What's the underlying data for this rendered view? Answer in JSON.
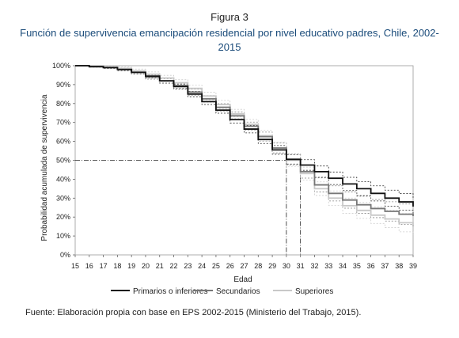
{
  "figure_label": "Figura 3",
  "figure_title": "Función de supervivencia emancipación residencial por nivel educativo padres, Chile, 2002-2015",
  "source_note": "Fuente: Elaboración propia con base en EPS 2002-2015 (Ministerio del Trabajo, 2015).",
  "chart_data": {
    "type": "line",
    "step": true,
    "xlabel": "Edad",
    "ylabel": "Probabilidad acumulada de supervivencia",
    "x": [
      15,
      16,
      17,
      18,
      19,
      20,
      21,
      22,
      23,
      24,
      25,
      26,
      27,
      28,
      29,
      30,
      31,
      32,
      33,
      34,
      35,
      36,
      37,
      38,
      39
    ],
    "xlim": [
      15,
      39
    ],
    "ylim": [
      0,
      1
    ],
    "y_ticks": [
      "0%",
      "10%",
      "20%",
      "30%",
      "40%",
      "50%",
      "60%",
      "70%",
      "80%",
      "90%",
      "100%"
    ],
    "grid": false,
    "legend_position": "bottom",
    "reference_line": {
      "y": 0.5,
      "x_drop": [
        30,
        31
      ],
      "style": "dash-dot"
    },
    "series": [
      {
        "name": "Primarios o inferiores",
        "color": "#111111",
        "width": 1.8,
        "values": [
          1.0,
          0.995,
          0.99,
          0.98,
          0.965,
          0.945,
          0.92,
          0.89,
          0.85,
          0.81,
          0.765,
          0.715,
          0.665,
          0.61,
          0.555,
          0.505,
          0.475,
          0.44,
          0.405,
          0.375,
          0.35,
          0.325,
          0.3,
          0.28,
          0.255
        ],
        "ci_low": [
          1.0,
          0.993,
          0.985,
          0.973,
          0.957,
          0.935,
          0.908,
          0.877,
          0.836,
          0.795,
          0.749,
          0.697,
          0.645,
          0.589,
          0.532,
          0.48,
          0.447,
          0.41,
          0.372,
          0.34,
          0.313,
          0.285,
          0.258,
          0.236,
          0.208
        ],
        "ci_high": [
          1.0,
          0.997,
          0.994,
          0.987,
          0.973,
          0.955,
          0.932,
          0.903,
          0.864,
          0.825,
          0.781,
          0.733,
          0.685,
          0.631,
          0.578,
          0.53,
          0.503,
          0.47,
          0.438,
          0.41,
          0.387,
          0.365,
          0.342,
          0.324,
          0.302
        ]
      },
      {
        "name": "Secundarios",
        "color": "#777777",
        "width": 1.8,
        "values": [
          1.0,
          0.995,
          0.99,
          0.98,
          0.965,
          0.94,
          0.92,
          0.895,
          0.86,
          0.825,
          0.78,
          0.735,
          0.68,
          0.625,
          0.565,
          0.505,
          0.44,
          0.37,
          0.325,
          0.29,
          0.265,
          0.245,
          0.23,
          0.215,
          0.205
        ],
        "ci_low": [
          1.0,
          0.993,
          0.985,
          0.973,
          0.956,
          0.929,
          0.907,
          0.881,
          0.844,
          0.808,
          0.761,
          0.715,
          0.658,
          0.601,
          0.539,
          0.476,
          0.406,
          0.333,
          0.285,
          0.247,
          0.22,
          0.197,
          0.179,
          0.161,
          0.148
        ],
        "ci_high": [
          1.0,
          0.997,
          0.994,
          0.987,
          0.974,
          0.951,
          0.933,
          0.909,
          0.876,
          0.842,
          0.799,
          0.755,
          0.702,
          0.649,
          0.591,
          0.534,
          0.474,
          0.407,
          0.365,
          0.333,
          0.31,
          0.293,
          0.281,
          0.269,
          0.262
        ]
      },
      {
        "name": "Superiores",
        "color": "#c8c8c8",
        "width": 1.8,
        "values": [
          1.0,
          0.995,
          0.992,
          0.985,
          0.972,
          0.955,
          0.935,
          0.91,
          0.88,
          0.84,
          0.795,
          0.745,
          0.69,
          0.63,
          0.565,
          0.5,
          0.43,
          0.35,
          0.3,
          0.26,
          0.235,
          0.21,
          0.19,
          0.17,
          0.16
        ],
        "ci_low": [
          1.0,
          0.992,
          0.987,
          0.977,
          0.962,
          0.943,
          0.921,
          0.894,
          0.862,
          0.82,
          0.773,
          0.721,
          0.664,
          0.602,
          0.535,
          0.468,
          0.396,
          0.314,
          0.262,
          0.22,
          0.193,
          0.166,
          0.144,
          0.122,
          0.108
        ],
        "ci_high": [
          1.0,
          0.998,
          0.997,
          0.993,
          0.982,
          0.967,
          0.949,
          0.926,
          0.898,
          0.86,
          0.817,
          0.769,
          0.716,
          0.658,
          0.595,
          0.532,
          0.464,
          0.386,
          0.338,
          0.3,
          0.277,
          0.254,
          0.236,
          0.218,
          0.212
        ]
      }
    ]
  }
}
